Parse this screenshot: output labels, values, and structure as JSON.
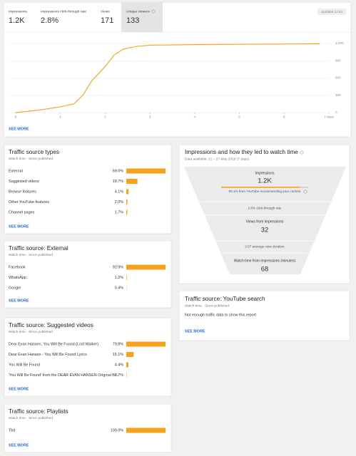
{
  "header": {
    "metrics": [
      {
        "label": "Impressions",
        "value": "1.2K"
      },
      {
        "label": "Impressions click-through rate",
        "value": "2.8%"
      },
      {
        "label": "Views",
        "value": "171"
      },
      {
        "label": "Unique viewers",
        "value": "133"
      }
    ],
    "updated": "Updated 12:44",
    "see_more": "SEE MORE"
  },
  "chart": {
    "type": "line",
    "color": "#f5a623",
    "x": [
      0,
      0.5,
      1,
      1.3,
      1.5,
      1.7,
      2,
      2.2,
      2.4,
      2.7,
      3,
      4,
      5,
      6,
      6.8
    ],
    "values": [
      0,
      40,
      100,
      150,
      300,
      550,
      800,
      1000,
      1100,
      1150,
      1170,
      1180,
      1185,
      1190,
      1195
    ],
    "xlim": [
      0,
      7
    ],
    "xticks": [
      0,
      1,
      2,
      3,
      4,
      5,
      6,
      {
        "value": 7,
        "label": "7 days"
      }
    ],
    "ylim": [
      0,
      1200
    ],
    "yticks": [
      0,
      300,
      600,
      900,
      {
        "value": 1200,
        "label": "1,200"
      }
    ],
    "grid": true
  },
  "cards": [
    {
      "title": "Traffic source types",
      "subtitle": "Watch time · Since published",
      "see_more": "SEE MORE",
      "rows": [
        {
          "name": "External",
          "value": 69.0,
          "value_label": "69.0%"
        },
        {
          "name": "Suggested videos",
          "value": 19.7,
          "value_label": "19.7%"
        },
        {
          "name": "Browse features",
          "value": 4.1,
          "value_label": "4.1%"
        },
        {
          "name": "Other YouTube features",
          "value": 2.0,
          "value_label": "2.0%"
        },
        {
          "name": "Channel pages",
          "value": 1.7,
          "value_label": "1.7%"
        }
      ]
    },
    {
      "title": "Traffic source: External",
      "subtitle": "Watch time · Since published",
      "see_more": "SEE MORE",
      "rows": [
        {
          "name": "Facebook",
          "value": 92.9,
          "value_label": "92.9%"
        },
        {
          "name": "WhatsApp",
          "value": 1.2,
          "value_label": "1.2%"
        },
        {
          "name": "Google",
          "value": 0.4,
          "value_label": "0.4%"
        }
      ]
    },
    {
      "title": "Traffic source: Suggested videos",
      "subtitle": "Watch time · Since published",
      "see_more": "SEE MORE",
      "rows": [
        {
          "name": "Dear Evan Hansen, You Will Be Found (Lost Walker)",
          "value": 79.8,
          "value_label": "79.8%"
        },
        {
          "name": "Dear Evan Hansen - You Will Be Found Lyrics",
          "value": 15.1,
          "value_label": "15.1%"
        },
        {
          "name": "You Will Be Found",
          "value": 4.4,
          "value_label": "4.4%"
        },
        {
          "name": "'You Will Be Found' from the DEAR EVAN HANSEN Original Br...",
          "value": 0.7,
          "value_label": "0.7%"
        }
      ]
    },
    {
      "title": "Traffic source: Playlists",
      "subtitle": "Watch time · Since published",
      "see_more": "SEE MORE",
      "rows": [
        {
          "name": "Tbd",
          "value": 100.0,
          "value_label": "100.0%"
        }
      ]
    }
  ],
  "funnel": {
    "title": "Impressions and how they led to watch time",
    "subtitle": "Data available: 21 – 27 May 2018 (7 days)",
    "impressions_label": "Impressions",
    "impressions": "1.2K",
    "recommended": "90.1% from YouTube recommending your content",
    "ctr": "2.8% click-through rate",
    "views_label": "Views from impressions",
    "views": "32",
    "duration": "2:07 average view duration",
    "watch_label": "Watch time from impressions (minutes)",
    "watch": "68"
  },
  "search_card": {
    "title": "Traffic source: YouTube search",
    "subtitle": "Watch time · Since published",
    "message": "Not enough traffic data to show this report",
    "see_more": "SEE MORE"
  }
}
